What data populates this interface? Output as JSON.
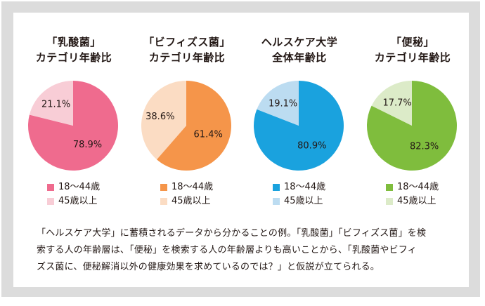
{
  "chart_data": [
    {
      "type": "pie",
      "title_lines": [
        "「乳酸菌」",
        "カテゴリ年齢比"
      ],
      "slices": [
        {
          "label": "18〜44歳",
          "value": 78.9,
          "value_label": "78.9%",
          "color": "#ef6b8e"
        },
        {
          "label": "45歳以上",
          "value": 21.1,
          "value_label": "21.1%",
          "color": "#f8cdd6"
        }
      ]
    },
    {
      "type": "pie",
      "title_lines": [
        "「ビフィズス菌」",
        "カテゴリ年齢比"
      ],
      "slices": [
        {
          "label": "18〜44歳",
          "value": 61.4,
          "value_label": "61.4%",
          "color": "#f5954a"
        },
        {
          "label": "45歳以上",
          "value": 38.6,
          "value_label": "38.6%",
          "color": "#fbdcc3"
        }
      ]
    },
    {
      "type": "pie",
      "title_lines": [
        "ヘルスケア大学",
        "全体年齢比"
      ],
      "slices": [
        {
          "label": "18〜44歳",
          "value": 80.9,
          "value_label": "80.9%",
          "color": "#1aa2de"
        },
        {
          "label": "45歳以上",
          "value": 19.1,
          "value_label": "19.1%",
          "color": "#bcdcf1"
        }
      ]
    },
    {
      "type": "pie",
      "title_lines": [
        "「便秘」",
        "カテゴリ年齢比"
      ],
      "slices": [
        {
          "label": "18〜44歳",
          "value": 82.3,
          "value_label": "82.3%",
          "color": "#7fbd3d"
        },
        {
          "label": "45歳以上",
          "value": 17.7,
          "value_label": "17.7%",
          "color": "#dcebc8"
        }
      ]
    }
  ],
  "caption_lines": [
    "「ヘルスケア大学」に蓄積されるデータから分かることの例。「乳酸菌」「ビフィズス菌」を検",
    "索する人の年齢層は、「便秘」を検索する人の年齢層よりも高いことから、「乳酸菌やビフィ",
    "ズス菌に、便秘解消以外の健康効果を求めているのでは？」と仮説が立てられる。"
  ]
}
